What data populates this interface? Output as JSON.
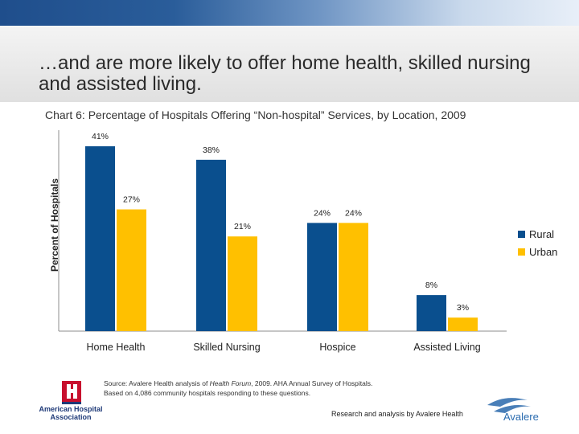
{
  "slide": {
    "title": "…and are more likely to offer home health, skilled nursing and assisted living."
  },
  "colors": {
    "rural": "#0a4f8e",
    "urban": "#ffc000"
  },
  "chart_data": {
    "type": "bar",
    "title": "Chart 6: Percentage of Hospitals Offering “Non-hospital” Services, by Location, 2009",
    "ylabel": "Percent of Hospitals",
    "xlabel": "",
    "categories": [
      "Home Health",
      "Skilled Nursing",
      "Hospice",
      "Assisted Living"
    ],
    "series": [
      {
        "name": "Rural",
        "values": [
          41,
          38,
          24,
          8
        ],
        "labels": [
          "41%",
          "38%",
          "24%",
          "8%"
        ]
      },
      {
        "name": "Urban",
        "values": [
          27,
          21,
          24,
          3
        ],
        "labels": [
          "27%",
          "21%",
          "24%",
          "3%"
        ]
      }
    ],
    "ylim": [
      0,
      41
    ],
    "grid": false,
    "legend_position": "right"
  },
  "footer": {
    "source_prefix": "Source:  Avalere Health analysis of ",
    "source_italic": "Health Forum",
    "source_suffix": ", 2009.  AHA Annual Survey of Hospitals.",
    "source_line2": "Based on 4,086 community hospitals responding to these questions.",
    "credit": "Research and analysis by Avalere Health",
    "aha_logo_text": "American Hospital Association",
    "avalere_logo_text": "Avalere"
  }
}
